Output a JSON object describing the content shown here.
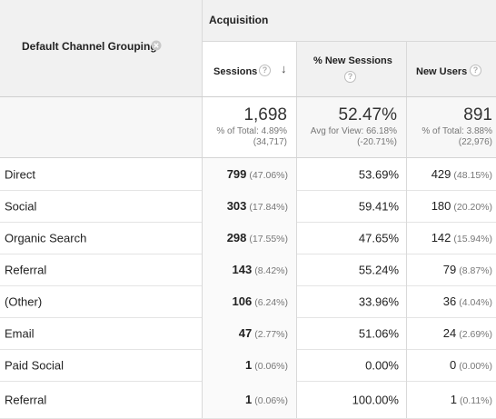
{
  "header": {
    "dimension_label": "Default Channel Grouping",
    "group_label": "Acquisition",
    "columns": {
      "sessions": "Sessions",
      "new_sessions": "% New Sessions",
      "new_users": "New Users"
    },
    "help_glyph": "?",
    "sort_glyph": "↓"
  },
  "totals": {
    "sessions": {
      "value": "1,698",
      "line1": "% of Total: 4.89%",
      "line2": "(34,717)"
    },
    "new_sessions": {
      "value": "52.47%",
      "line1": "Avg for View: 66.18%",
      "line2": "(-20.71%)"
    },
    "new_users": {
      "value": "891",
      "line1": "% of Total: 3.88%",
      "line2": "(22,976)"
    }
  },
  "rows": [
    {
      "channel": "Direct",
      "sessions": "799",
      "sessions_pct": "(47.06%)",
      "new_sessions": "53.69%",
      "new_users": "429",
      "new_users_pct": "(48.15%)"
    },
    {
      "channel": "Social",
      "sessions": "303",
      "sessions_pct": "(17.84%)",
      "new_sessions": "59.41%",
      "new_users": "180",
      "new_users_pct": "(20.20%)"
    },
    {
      "channel": "Organic Search",
      "sessions": "298",
      "sessions_pct": "(17.55%)",
      "new_sessions": "47.65%",
      "new_users": "142",
      "new_users_pct": "(15.94%)"
    },
    {
      "channel": "Referral",
      "sessions": "143",
      "sessions_pct": "(8.42%)",
      "new_sessions": "55.24%",
      "new_users": "79",
      "new_users_pct": "(8.87%)"
    },
    {
      "channel": "(Other)",
      "sessions": "106",
      "sessions_pct": "(6.24%)",
      "new_sessions": "33.96%",
      "new_users": "36",
      "new_users_pct": "(4.04%)"
    },
    {
      "channel": "Email",
      "sessions": "47",
      "sessions_pct": "(2.77%)",
      "new_sessions": "51.06%",
      "new_users": "24",
      "new_users_pct": "(2.69%)"
    },
    {
      "channel": "Paid Social",
      "sessions": "1",
      "sessions_pct": "(0.06%)",
      "new_sessions": "0.00%",
      "new_users": "0",
      "new_users_pct": "(0.00%)"
    },
    {
      "channel": "Referral",
      "sessions": "1",
      "sessions_pct": "(0.06%)",
      "new_sessions": "100.00%",
      "new_users": "1",
      "new_users_pct": "(0.11%)"
    }
  ]
}
